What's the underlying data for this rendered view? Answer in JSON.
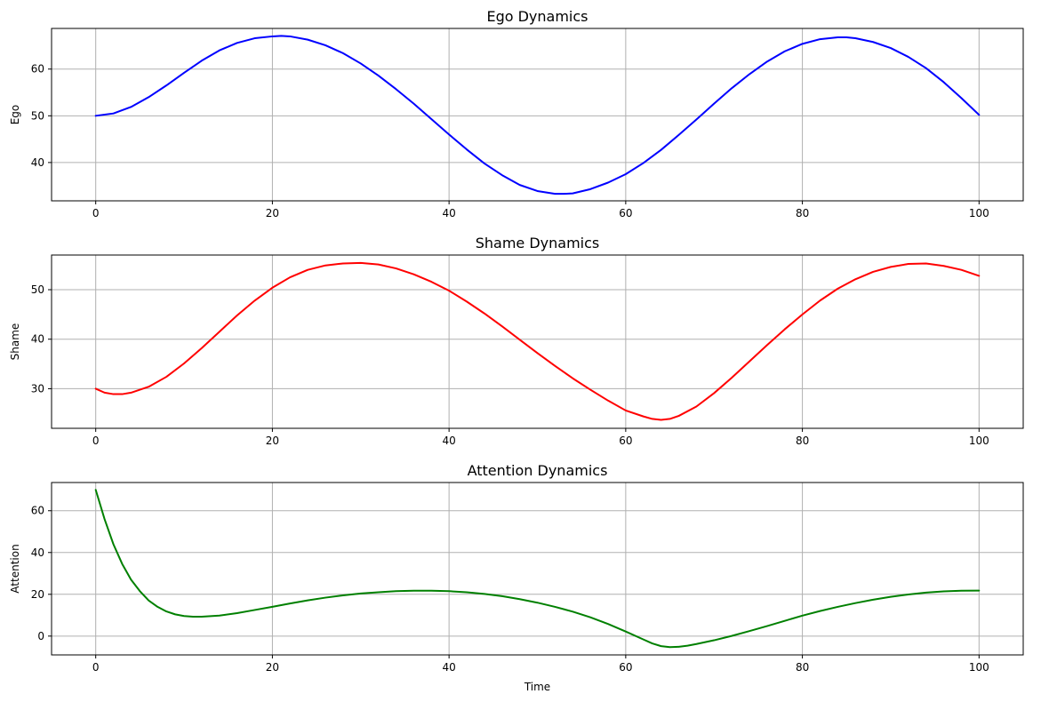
{
  "chart_data": [
    {
      "type": "line",
      "title": "Ego Dynamics",
      "xlabel": "",
      "ylabel": "Ego",
      "xlim": [
        -5,
        105
      ],
      "ylim": [
        31.8,
        68.7
      ],
      "xticks": [
        0,
        20,
        40,
        60,
        80,
        100
      ],
      "yticks": [
        40,
        50,
        60
      ],
      "grid": true,
      "color": "#0000ff",
      "x": [
        0,
        2,
        4,
        6,
        8,
        10,
        12,
        14,
        16,
        18,
        20,
        21,
        22,
        24,
        26,
        28,
        30,
        32,
        34,
        36,
        38,
        40,
        42,
        44,
        46,
        48,
        50,
        52,
        53,
        54,
        56,
        58,
        60,
        62,
        64,
        66,
        68,
        70,
        72,
        74,
        76,
        78,
        80,
        82,
        84,
        85,
        86,
        88,
        90,
        92,
        94,
        96,
        98,
        100
      ],
      "y": [
        50.0,
        50.5,
        51.9,
        54.0,
        56.5,
        59.2,
        61.8,
        64.0,
        65.6,
        66.6,
        67.0,
        67.1,
        67.0,
        66.3,
        65.1,
        63.4,
        61.2,
        58.6,
        55.7,
        52.6,
        49.3,
        46.0,
        42.8,
        39.8,
        37.3,
        35.2,
        33.9,
        33.3,
        33.3,
        33.4,
        34.3,
        35.7,
        37.5,
        39.9,
        42.7,
        45.9,
        49.2,
        52.6,
        55.9,
        58.9,
        61.6,
        63.8,
        65.4,
        66.4,
        66.8,
        66.8,
        66.6,
        65.8,
        64.5,
        62.6,
        60.2,
        57.2,
        53.8,
        50.2
      ]
    },
    {
      "type": "line",
      "title": "Shame Dynamics",
      "xlabel": "",
      "ylabel": "Shame",
      "xlim": [
        -5,
        105
      ],
      "ylim": [
        22.0,
        57.0
      ],
      "xticks": [
        0,
        20,
        40,
        60,
        80,
        100
      ],
      "yticks": [
        30,
        40,
        50
      ],
      "grid": true,
      "color": "#ff0000",
      "x": [
        0,
        1,
        2,
        3,
        4,
        6,
        8,
        10,
        12,
        14,
        16,
        18,
        20,
        22,
        24,
        26,
        28,
        30,
        32,
        34,
        36,
        38,
        40,
        42,
        44,
        46,
        48,
        50,
        52,
        54,
        56,
        58,
        60,
        62,
        63,
        64,
        65,
        66,
        68,
        70,
        72,
        74,
        76,
        78,
        80,
        82,
        84,
        86,
        88,
        90,
        92,
        94,
        96,
        98,
        100
      ],
      "y": [
        30.0,
        29.2,
        28.9,
        28.9,
        29.2,
        30.4,
        32.4,
        35.1,
        38.2,
        41.5,
        44.8,
        47.8,
        50.4,
        52.5,
        54.0,
        54.9,
        55.3,
        55.4,
        55.1,
        54.3,
        53.1,
        51.6,
        49.8,
        47.6,
        45.2,
        42.6,
        39.9,
        37.2,
        34.6,
        32.1,
        29.8,
        27.6,
        25.6,
        24.4,
        23.9,
        23.7,
        23.9,
        24.5,
        26.4,
        29.1,
        32.2,
        35.5,
        38.8,
        42.0,
        45.0,
        47.8,
        50.2,
        52.1,
        53.6,
        54.6,
        55.2,
        55.3,
        54.8,
        54.0,
        52.8
      ]
    },
    {
      "type": "line",
      "title": "Attention Dynamics",
      "xlabel": "Time",
      "ylabel": "Attention",
      "xlim": [
        -5,
        105
      ],
      "ylim": [
        -9.0,
        73.5
      ],
      "xticks": [
        0,
        20,
        40,
        60,
        80,
        100
      ],
      "yticks": [
        0,
        20,
        40,
        60
      ],
      "grid": true,
      "color": "#008000",
      "x": [
        0,
        1,
        2,
        3,
        4,
        5,
        6,
        7,
        8,
        9,
        10,
        11,
        12,
        14,
        16,
        18,
        20,
        22,
        24,
        26,
        28,
        30,
        32,
        34,
        36,
        38,
        40,
        42,
        44,
        46,
        48,
        50,
        52,
        54,
        56,
        58,
        60,
        62,
        63,
        64,
        65,
        66,
        67,
        68,
        70,
        72,
        74,
        76,
        78,
        80,
        82,
        84,
        86,
        88,
        90,
        92,
        94,
        96,
        98,
        100
      ],
      "y": [
        70.0,
        56.0,
        44.0,
        34.5,
        27.0,
        21.5,
        17.0,
        14.0,
        11.8,
        10.4,
        9.6,
        9.3,
        9.3,
        9.8,
        11.0,
        12.5,
        14.0,
        15.6,
        17.1,
        18.4,
        19.5,
        20.4,
        21.0,
        21.5,
        21.7,
        21.7,
        21.5,
        21.0,
        20.2,
        19.1,
        17.7,
        16.0,
        14.0,
        11.7,
        9.0,
        5.8,
        2.2,
        -1.6,
        -3.5,
        -4.8,
        -5.3,
        -5.1,
        -4.6,
        -3.8,
        -2.0,
        0.1,
        2.4,
        4.8,
        7.3,
        9.8,
        12.0,
        14.0,
        15.8,
        17.4,
        18.8,
        19.9,
        20.8,
        21.4,
        21.7,
        21.8
      ]
    }
  ]
}
